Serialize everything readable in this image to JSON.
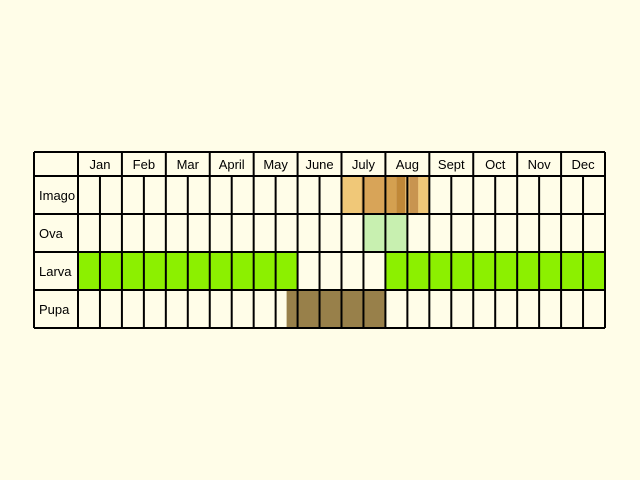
{
  "months": [
    "Jan",
    "Feb",
    "Mar",
    "April",
    "May",
    "June",
    "July",
    "Aug",
    "Sept",
    "Oct",
    "Nov",
    "Dec"
  ],
  "stages": [
    {
      "name": "Imago",
      "periods": [
        {
          "start": 6.0,
          "end": 6.45,
          "color": "#f0c878"
        },
        {
          "start": 6.45,
          "end": 7.0,
          "color": "#d8a458"
        },
        {
          "start": 7.0,
          "end": 7.25,
          "color": "#d4a050"
        },
        {
          "start": 7.25,
          "end": 7.45,
          "color": "#c08838"
        },
        {
          "start": 7.45,
          "end": 7.55,
          "color": "#e0b060"
        },
        {
          "start": 7.55,
          "end": 7.75,
          "color": "#c89450"
        },
        {
          "start": 7.75,
          "end": 8.0,
          "color": "#f0c878"
        }
      ]
    },
    {
      "name": "Ova",
      "periods": [
        {
          "start": 6.5,
          "end": 7.5,
          "color": "#c8f0b0"
        }
      ]
    },
    {
      "name": "Larva",
      "periods": [
        {
          "start": 0.0,
          "end": 5.0,
          "color": "#8cf000"
        },
        {
          "start": 7.0,
          "end": 12.0,
          "color": "#8cf000"
        }
      ]
    },
    {
      "name": "Pupa",
      "periods": [
        {
          "start": 4.75,
          "end": 7.0,
          "color": "#98804a"
        }
      ]
    }
  ],
  "colors": {
    "background": "#fffde8",
    "grid": "#000000"
  }
}
